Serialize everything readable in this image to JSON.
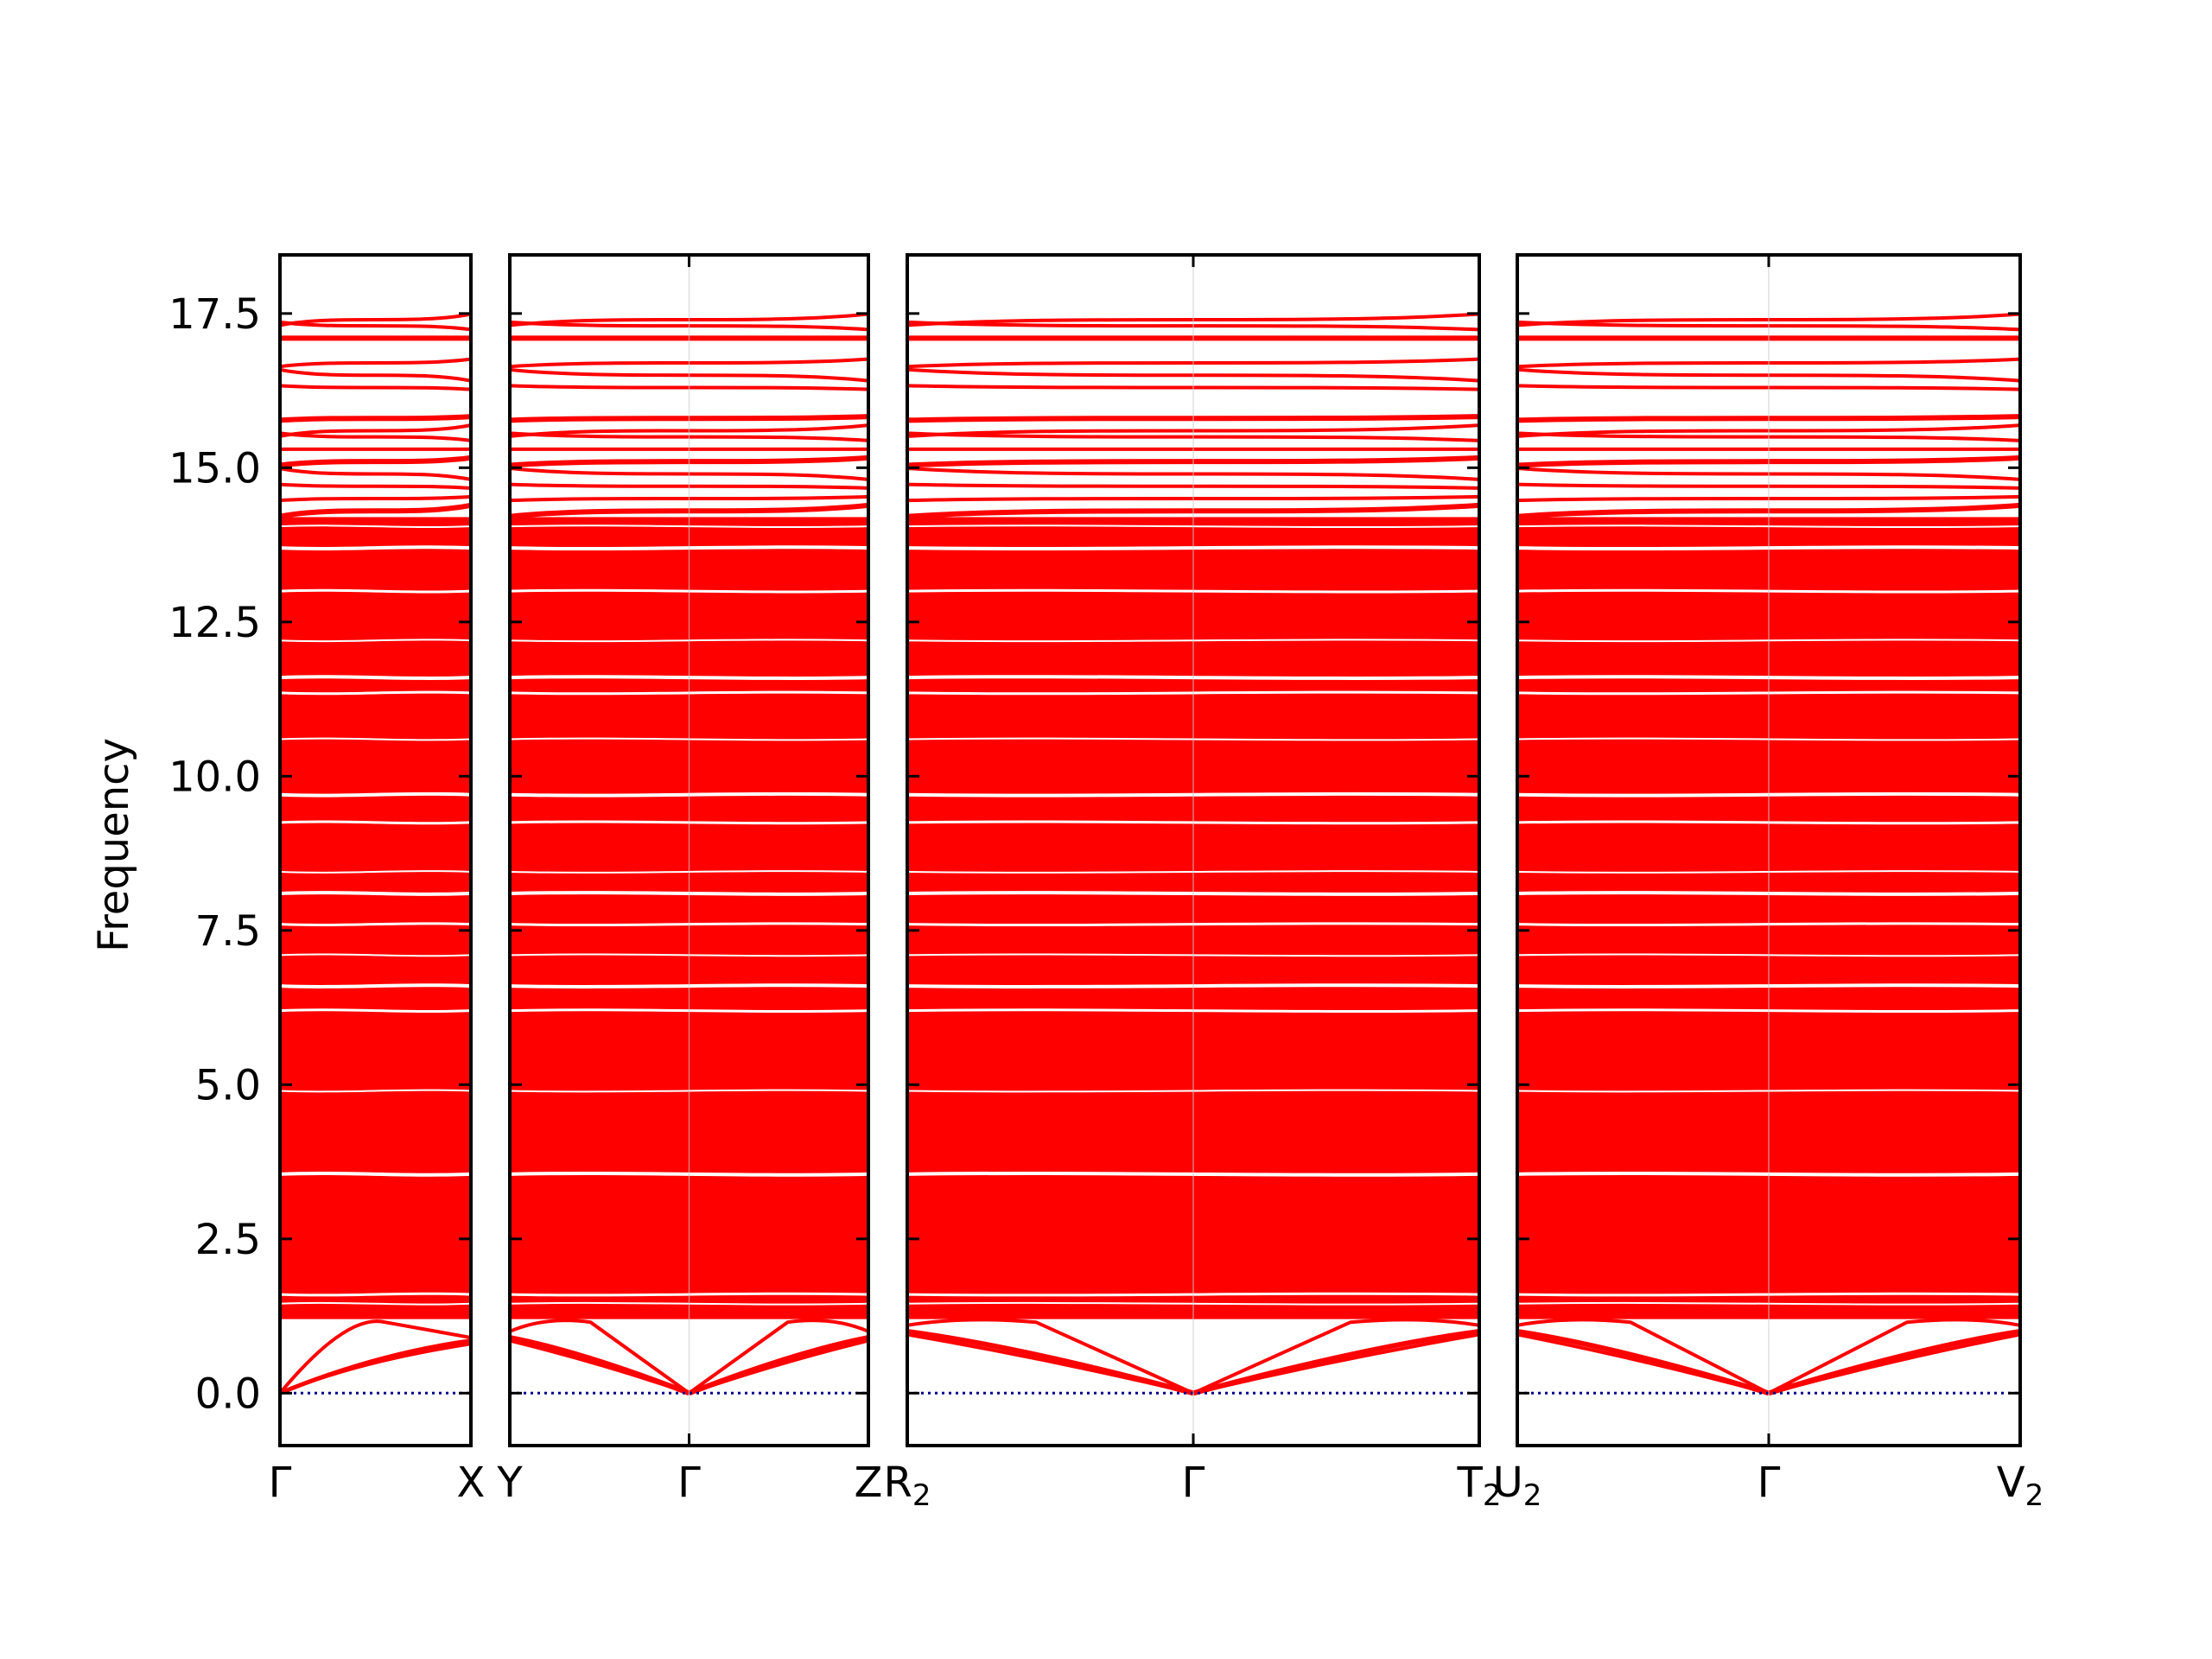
{
  "chart_data": {
    "type": "line",
    "ylabel": "Frequency",
    "xlabel": "",
    "ylim": [
      -0.85,
      18.45
    ],
    "yticks": [
      "0.0",
      "2.5",
      "5.0",
      "7.5",
      "10.0",
      "12.5",
      "15.0",
      "17.5"
    ],
    "grid": false,
    "legend": "none",
    "colors": {
      "bands": "#ff0000",
      "zero_line": "#00008b",
      "axes": "#000000"
    },
    "panels": [
      {
        "segments": [
          [
            "Γ",
            "X"
          ]
        ],
        "ticks": [
          {
            "label": "Γ",
            "sub": ""
          },
          {
            "label": "X",
            "sub": ""
          }
        ],
        "acoustic_low_end": 0.85
      },
      {
        "segments": [
          [
            "Y",
            "Γ"
          ],
          [
            "Γ",
            "Z"
          ]
        ],
        "ticks": [
          {
            "label": "Y",
            "sub": ""
          },
          {
            "label": "Γ",
            "sub": ""
          },
          {
            "label": "Z",
            "sub": ""
          }
        ],
        "acoustic_low_end": 0.9
      },
      {
        "segments": [
          [
            "R",
            "Γ"
          ],
          [
            "Γ",
            "T"
          ]
        ],
        "ticks": [
          {
            "label": "R",
            "sub": "2"
          },
          {
            "label": "Γ",
            "sub": ""
          },
          {
            "label": "T",
            "sub": "2"
          }
        ],
        "acoustic_low_end": 1.0
      },
      {
        "segments": [
          [
            "U",
            "Γ"
          ],
          [
            "Γ",
            "V"
          ]
        ],
        "ticks": [
          {
            "label": "U",
            "sub": "2"
          },
          {
            "label": "Γ",
            "sub": ""
          },
          {
            "label": "V",
            "sub": "2"
          }
        ],
        "acoustic_low_end": 1.0
      }
    ],
    "dense_band_range": [
      1.2,
      14.2
    ],
    "upper_bands": [
      14.3,
      14.5,
      14.7,
      14.9,
      15.1,
      15.3,
      15.5,
      15.6,
      15.8,
      16.3,
      16.5,
      16.7,
      17.1,
      17.3,
      17.4
    ],
    "gaps": [
      1.45,
      1.6,
      3.55,
      4.9,
      6.2,
      6.6,
      7.1,
      7.6,
      8.1,
      8.45,
      9.25,
      9.7,
      10.6,
      11.35,
      11.6,
      12.2,
      13.0,
      13.7,
      14.05,
      14.45,
      15.0,
      15.95,
      16.55
    ],
    "zero_line": 0.0
  }
}
